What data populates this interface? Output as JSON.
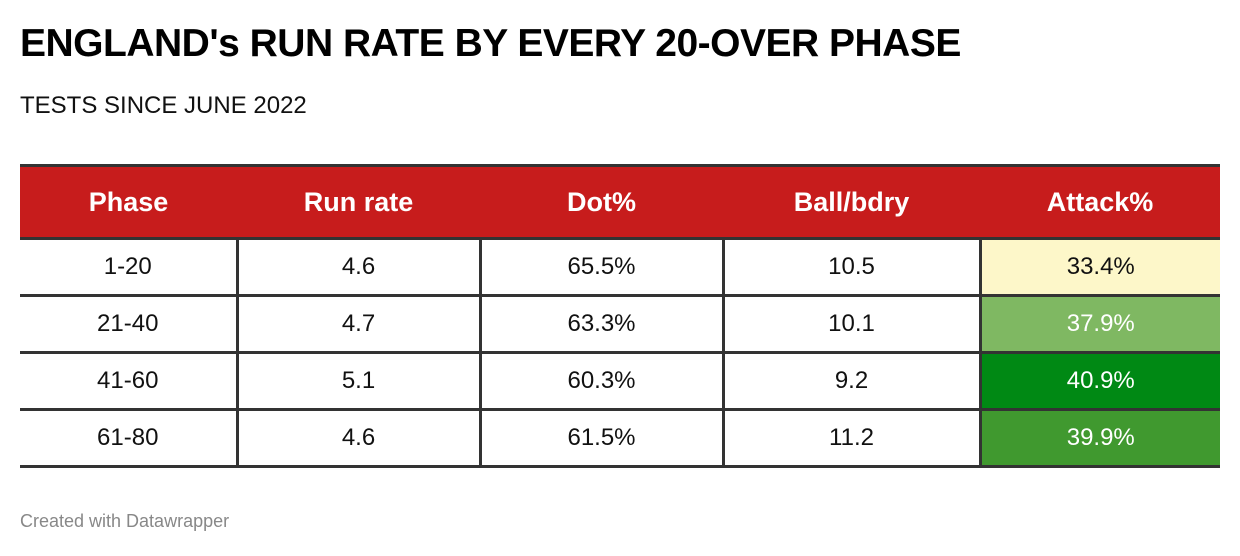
{
  "title": "ENGLAND's RUN RATE BY EVERY 20-OVER PHASE",
  "subtitle": "TESTS SINCE JUNE 2022",
  "footer": "Created with Datawrapper",
  "colors": {
    "header": "#c71c1c"
  },
  "chart_data": {
    "type": "table",
    "columns": [
      "Phase",
      "Run rate",
      "Dot%",
      "Ball/bdry",
      "Attack%"
    ],
    "rows": [
      {
        "cells": [
          "1-20",
          "4.6",
          "65.5%",
          "10.5",
          "33.4%"
        ],
        "attack_color": "#fdf7c9",
        "attack_text": "#111"
      },
      {
        "cells": [
          "21-40",
          "4.7",
          "63.3%",
          "10.1",
          "37.9%"
        ],
        "attack_color": "#7fb862",
        "attack_text": "#fff"
      },
      {
        "cells": [
          "41-60",
          "5.1",
          "60.3%",
          "9.2",
          "40.9%"
        ],
        "attack_color": "#008914",
        "attack_text": "#fff"
      },
      {
        "cells": [
          "61-80",
          "4.6",
          "61.5%",
          "11.2",
          "39.9%"
        ],
        "attack_color": "#40992f",
        "attack_text": "#fff"
      }
    ]
  }
}
